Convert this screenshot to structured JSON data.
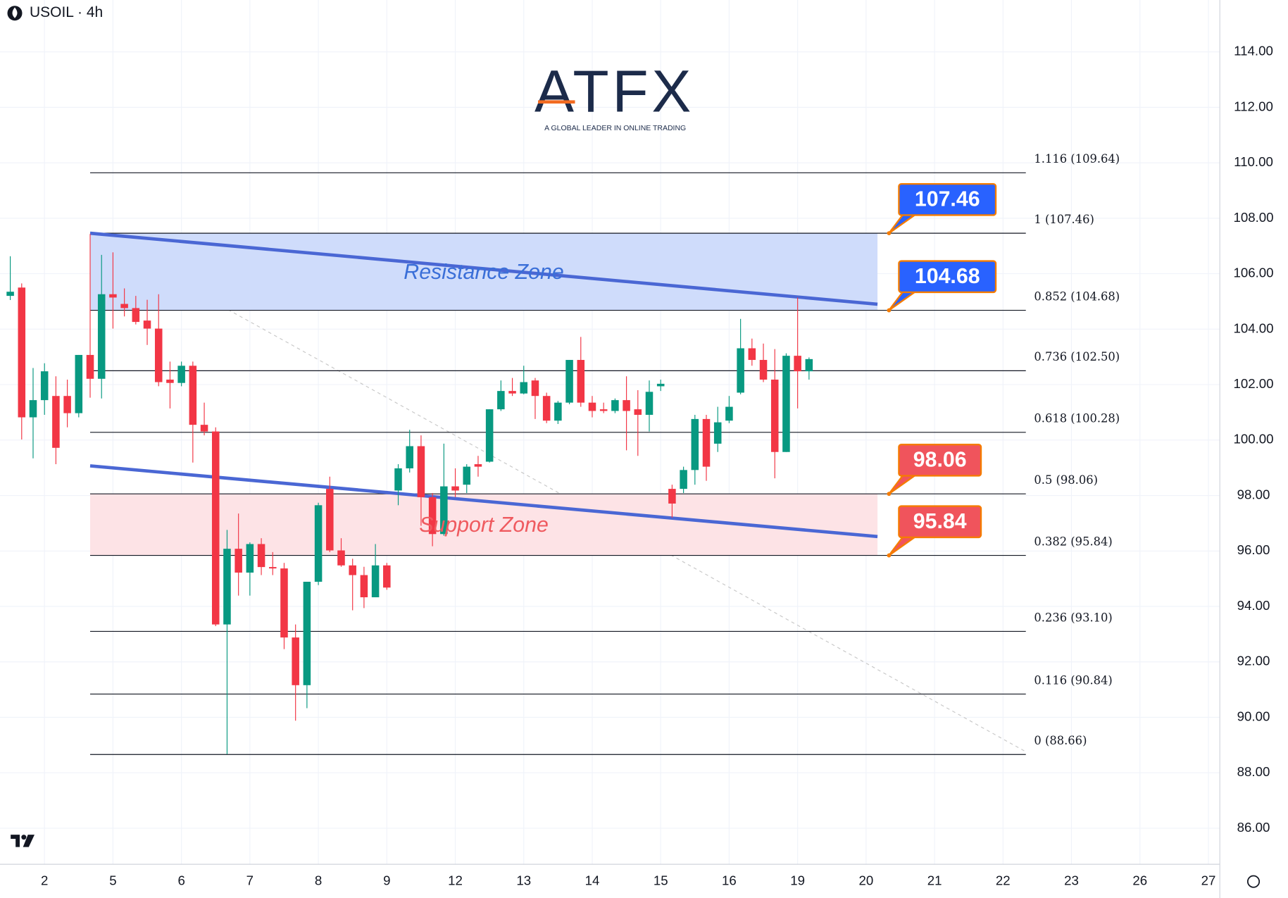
{
  "chart_data": {
    "type": "candlestick",
    "title": "USOIL · 4h",
    "logo": {
      "name": "ATFX",
      "tagline": "A GLOBAL LEADER IN ONLINE TRADING"
    },
    "up_color": "#089981",
    "down_color": "#f23645",
    "x": [
      -3,
      -2,
      -1,
      0,
      1,
      2,
      3,
      4,
      5,
      6,
      7,
      8,
      9,
      10,
      11,
      12,
      13,
      14,
      15,
      16,
      17,
      18,
      19,
      20,
      21,
      22,
      23,
      24,
      25,
      26,
      27,
      28,
      29,
      30,
      31,
      32,
      33,
      34,
      35,
      36,
      37,
      38,
      39,
      40,
      41,
      42,
      43,
      44,
      45,
      46,
      47,
      48,
      49,
      50,
      51,
      52,
      53,
      54,
      55,
      56,
      57,
      58,
      59,
      60,
      61,
      62,
      63,
      64,
      65,
      66,
      67
    ],
    "open": [
      105.2,
      105.5,
      100.82,
      101.44,
      101.59,
      101.59,
      100.97,
      103.07,
      102.21,
      105.26,
      104.91,
      104.76,
      104.31,
      104.02,
      102.18,
      102.06,
      102.68,
      100.55,
      100.31,
      93.35,
      96.08,
      95.22,
      96.25,
      95.42,
      95.37,
      92.88,
      91.16,
      94.89,
      98.24,
      96.02,
      95.48,
      95.13,
      94.33,
      95.48,
      98.18,
      98.98,
      99.78,
      97.94,
      96.61,
      98.33,
      98.39,
      99.13,
      99.22,
      101.11,
      101.77,
      101.68,
      102.15,
      101.59,
      100.7,
      101.35,
      102.89,
      101.35,
      101.11,
      101.05,
      101.44,
      101.11,
      100.91,
      101.94,
      98.24,
      98.24,
      98.92,
      100.76,
      99.87,
      100.7,
      101.71,
      103.31,
      102.89,
      102.18,
      99.57,
      103.04,
      102.48
    ],
    "high": [
      106.63,
      105.65,
      102.6,
      102.77,
      102.3,
      102.18,
      103.07,
      107.43,
      106.68,
      106.77,
      105.47,
      105.2,
      105.06,
      105.26,
      102.83,
      102.83,
      102.83,
      101.35,
      100.46,
      96.76,
      97.35,
      96.31,
      96.46,
      95.96,
      95.57,
      93.35,
      94.89,
      97.74,
      98.68,
      96.46,
      95.72,
      95.43,
      96.25,
      95.57,
      99.13,
      100.37,
      100.17,
      98.09,
      99.87,
      98.98,
      99.13,
      99.43,
      101.11,
      102.15,
      102.24,
      102.68,
      102.24,
      101.71,
      101.41,
      102.89,
      103.72,
      101.59,
      101.35,
      101.5,
      102.3,
      101.8,
      102.15,
      102.18,
      98.39,
      99.04,
      100.91,
      100.91,
      101.2,
      101.59,
      104.37,
      103.66,
      103.48,
      103.28,
      103.13,
      105.14,
      102.98
    ],
    "low": [
      105.05,
      100.02,
      99.34,
      100.91,
      99.13,
      100.46,
      100.82,
      101.53,
      101.5,
      104.02,
      104.46,
      104.17,
      103.43,
      101.94,
      101.14,
      101.94,
      99.19,
      100.17,
      93.29,
      88.67,
      94.39,
      94.39,
      95.13,
      95.13,
      92.46,
      89.88,
      90.33,
      94.77,
      95.96,
      95.43,
      93.86,
      93.94,
      94.33,
      94.6,
      97.65,
      98.83,
      96.91,
      96.17,
      96.55,
      97.94,
      98.09,
      98.68,
      99.19,
      101.05,
      101.59,
      101.65,
      100.76,
      100.61,
      100.58,
      101.29,
      101.2,
      100.82,
      100.97,
      100.97,
      99.63,
      99.43,
      100.31,
      101.77,
      97.2,
      98.09,
      98.39,
      98.53,
      99.57,
      100.61,
      101.65,
      102.68,
      102.09,
      98.62,
      99.57,
      101.14,
      102.18
    ],
    "close": [
      105.35,
      100.82,
      101.44,
      102.48,
      99.72,
      100.97,
      103.07,
      102.21,
      105.26,
      105.14,
      104.76,
      104.26,
      104.02,
      102.09,
      102.06,
      102.68,
      100.55,
      100.31,
      93.35,
      96.08,
      95.22,
      96.25,
      95.42,
      95.37,
      92.88,
      91.16,
      94.89,
      97.65,
      96.02,
      95.48,
      95.13,
      94.33,
      95.48,
      94.68,
      98.98,
      99.78,
      97.94,
      96.61,
      98.33,
      98.18,
      99.04,
      99.04,
      101.11,
      101.77,
      101.68,
      102.09,
      101.59,
      100.7,
      101.35,
      102.89,
      101.35,
      101.05,
      101.05,
      101.44,
      101.05,
      100.91,
      101.74,
      102.03,
      97.71,
      98.92,
      100.76,
      99.04,
      100.64,
      101.2,
      103.31,
      102.89,
      102.18,
      99.57,
      103.04,
      102.48,
      102.92
    ],
    "xlim": [
      -3.9,
      103
    ],
    "xticks": [
      {
        "value": 0,
        "label": "2"
      },
      {
        "value": 6,
        "label": "5"
      },
      {
        "value": 12,
        "label": "6"
      },
      {
        "value": 18,
        "label": "7"
      },
      {
        "value": 24,
        "label": "8"
      },
      {
        "value": 30,
        "label": "9"
      },
      {
        "value": 36,
        "label": "12"
      },
      {
        "value": 42,
        "label": "13"
      },
      {
        "value": 48,
        "label": "14"
      },
      {
        "value": 54,
        "label": "15"
      },
      {
        "value": 60,
        "label": "16"
      },
      {
        "value": 66,
        "label": "19"
      },
      {
        "value": 72,
        "label": "20"
      },
      {
        "value": 78,
        "label": "21"
      },
      {
        "value": 84,
        "label": "22"
      },
      {
        "value": 90,
        "label": "23"
      },
      {
        "value": 96,
        "label": "26"
      },
      {
        "value": 102,
        "label": "27"
      }
    ],
    "ylim": [
      84.7,
      115.87
    ],
    "yticks": [
      {
        "value": 86,
        "label": "86.00"
      },
      {
        "value": 88,
        "label": "88.00"
      },
      {
        "value": 90,
        "label": "90.00"
      },
      {
        "value": 92,
        "label": "92.00"
      },
      {
        "value": 94,
        "label": "94.00"
      },
      {
        "value": 96,
        "label": "96.00"
      },
      {
        "value": 98,
        "label": "98.00"
      },
      {
        "value": 100,
        "label": "100.00"
      },
      {
        "value": 102,
        "label": "102.00"
      },
      {
        "value": 104,
        "label": "104.00"
      },
      {
        "value": 106,
        "label": "106.00"
      },
      {
        "value": 108,
        "label": "108.00"
      },
      {
        "value": 110,
        "label": "110.00"
      },
      {
        "value": 112,
        "label": "112.00"
      },
      {
        "value": 114,
        "label": "114.00"
      }
    ],
    "grid": true,
    "fib_x": [
      4,
      86
    ],
    "fib_levels": [
      {
        "value": 109.64,
        "label": "1.116 (109.64)"
      },
      {
        "value": 107.46,
        "label": "1 (107.46)"
      },
      {
        "value": 104.68,
        "label": "0.852 (104.68)"
      },
      {
        "value": 102.5,
        "label": "0.736 (102.50)"
      },
      {
        "value": 100.28,
        "label": "0.618 (100.28)"
      },
      {
        "value": 98.06,
        "label": "0.5 (98.06)"
      },
      {
        "value": 95.84,
        "label": "0.382 (95.84)"
      },
      {
        "value": 93.1,
        "label": "0.236 (93.10)"
      },
      {
        "value": 90.84,
        "label": "0.116 (90.84)"
      },
      {
        "value": 88.66,
        "label": "0 (88.66)"
      }
    ],
    "zone_x": [
      4,
      73
    ],
    "zones": [
      {
        "name": "Resistance Zone",
        "from": 104.68,
        "to": 107.46,
        "color": "#cfdcfb",
        "text_color": "#3a6fd8"
      },
      {
        "name": "Support Zone",
        "from": 95.84,
        "to": 98.06,
        "color": "#fde3e6",
        "text_color": "#ef5a5f"
      }
    ],
    "trendlines": [
      {
        "x": [
          4,
          73
        ],
        "y": [
          107.46,
          104.9
        ],
        "color": "#4a67d4"
      },
      {
        "x": [
          4,
          73
        ],
        "y": [
          99.07,
          96.52
        ],
        "color": "#4a67d4"
      },
      {
        "x": [
          4,
          86
        ],
        "y": [
          107.46,
          88.76
        ],
        "color": "#c8c8c8"
      }
    ],
    "callouts": [
      {
        "value": 107.46,
        "color": "#2962ff"
      },
      {
        "value": 104.68,
        "color": "#2962ff"
      },
      {
        "value": 98.06,
        "color": "#f0545c"
      },
      {
        "value": 95.84,
        "color": "#f0545c"
      }
    ]
  }
}
